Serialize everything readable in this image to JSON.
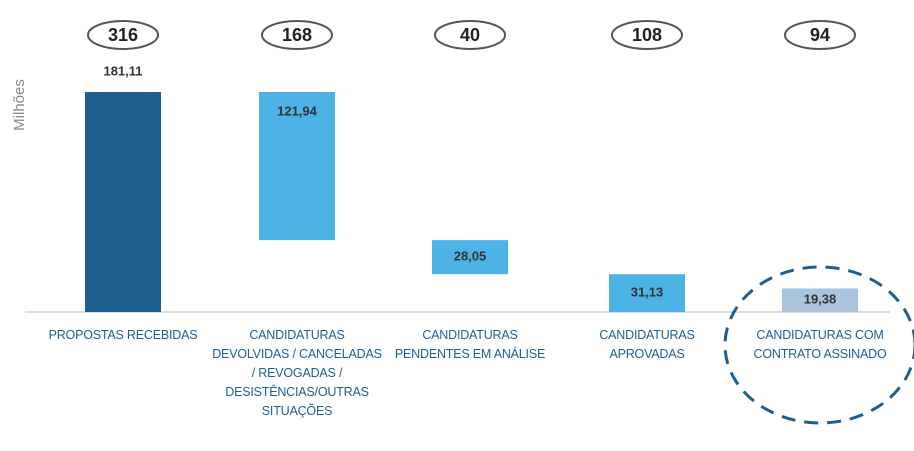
{
  "chart_data": {
    "type": "waterfall",
    "y_label": "Milhões",
    "categories": [
      "PROPOSTAS RECEBIDAS",
      "CANDIDATURAS DEVOLVIDAS / CANCELADAS / REVOGADAS / DESISTÊNCIAS/OUTRAS SITUAÇÕES",
      "CANDIDATURAS PENDENTES EM ANÁLISE",
      "CANDIDATURAS APROVADAS",
      "CANDIDATURAS COM CONTRATO ASSINADO"
    ],
    "values": [
      181.11,
      121.94,
      28.05,
      31.13,
      19.38
    ],
    "value_labels": [
      "181,11",
      "121,94",
      "28,05",
      "31,13",
      "19,38"
    ],
    "measure": [
      "total",
      "decrease",
      "decrease",
      "total",
      "total"
    ],
    "counts": [
      316,
      168,
      40,
      108,
      94
    ],
    "colors": [
      "#1f5f8f",
      "#4db3e6",
      "#4db3e6",
      "#4db3e6",
      "#a9c4dc"
    ]
  }
}
